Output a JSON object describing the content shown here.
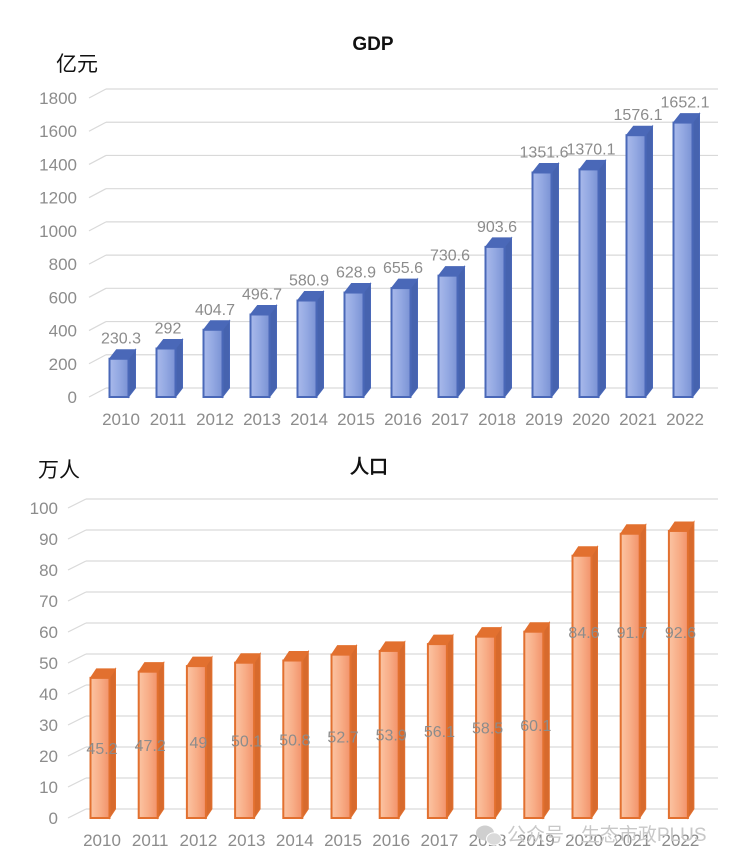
{
  "chart_data": [
    {
      "type": "bar",
      "title": "GDP",
      "ylabel": "亿元",
      "xlabel": "",
      "categories": [
        "2010",
        "2011",
        "2012",
        "2013",
        "2014",
        "2015",
        "2016",
        "2017",
        "2018",
        "2019",
        "2020",
        "2021",
        "2022"
      ],
      "values": [
        230.3,
        292,
        404.7,
        496.7,
        580.9,
        628.9,
        655.6,
        730.6,
        903.6,
        1351.6,
        1370.1,
        1576.1,
        1652.1
      ],
      "data_labels": [
        "230.3",
        "292",
        "404.7",
        "496.7",
        "580.9",
        "628.9",
        "655.6",
        "730.6",
        "903.6",
        "1351.6",
        "1370.1",
        "1576.1",
        "1652.1"
      ],
      "ylim": [
        0,
        1800
      ],
      "yticks": [
        0,
        200,
        400,
        600,
        800,
        1000,
        1200,
        1400,
        1600,
        1800
      ],
      "grid": true,
      "bar_color": "#8fa3dc",
      "bar_edge_color": "#4a68b8"
    },
    {
      "type": "bar",
      "title": "人口",
      "ylabel": "万人",
      "xlabel": "",
      "categories": [
        "2010",
        "2011",
        "2012",
        "2013",
        "2014",
        "2015",
        "2016",
        "2017",
        "2018",
        "2019",
        "2020",
        "2021",
        "2022"
      ],
      "values": [
        45.2,
        47.2,
        49,
        50.1,
        50.8,
        52.7,
        53.9,
        56.1,
        58.5,
        60.1,
        84.6,
        91.7,
        92.6
      ],
      "data_labels": [
        "45.2",
        "47.2",
        "49",
        "50.1",
        "50.8",
        "52.7",
        "53.9",
        "56.1",
        "58.5",
        "60.1",
        "84.6",
        "91.7",
        "92.6"
      ],
      "ylim": [
        0,
        100
      ],
      "yticks": [
        0,
        10,
        20,
        30,
        40,
        50,
        60,
        70,
        80,
        90,
        100
      ],
      "grid": true,
      "bar_color": "#f6a27a",
      "bar_edge_color": "#e2702f"
    }
  ],
  "watermark": {
    "text": "公众号 · 生态市政PLUS",
    "icon": "wechat-icon"
  }
}
